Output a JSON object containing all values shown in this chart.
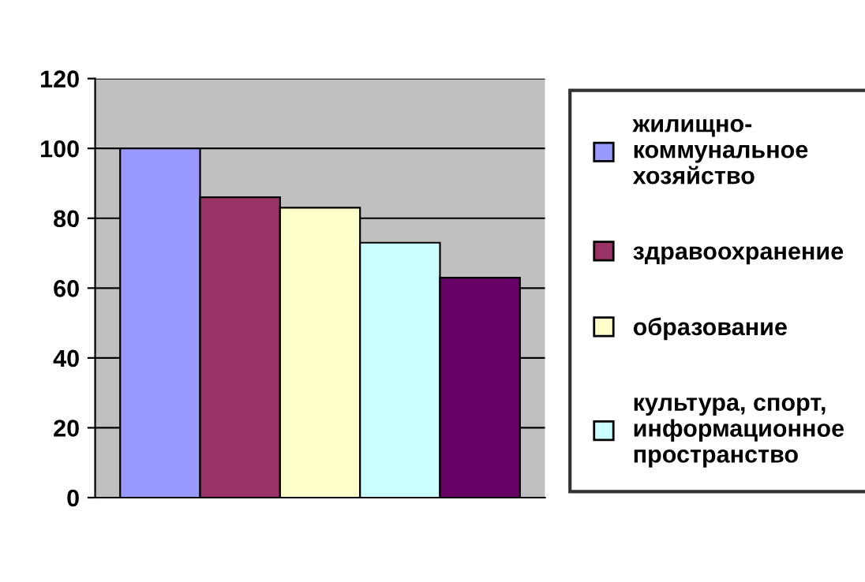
{
  "chart_data": {
    "type": "bar",
    "categories": [
      null
    ],
    "series": [
      {
        "name": "жилищно-\nкоммунальное\nхозяйство",
        "color": "#9999ff",
        "values": [
          100
        ]
      },
      {
        "name": "здравоохранение",
        "color": "#993366",
        "values": [
          86
        ]
      },
      {
        "name": "образование",
        "color": "#ffffcc",
        "values": [
          83
        ]
      },
      {
        "name": "культура, спорт,\nинформационное\nпространство",
        "color": "#ccffff",
        "values": [
          73
        ]
      },
      {
        "color": "#660066",
        "values": [
          63
        ]
      }
    ],
    "ylim": [
      0,
      120
    ],
    "yticks": [
      0,
      20,
      40,
      60,
      80,
      100,
      120
    ],
    "grid": "y",
    "legend": "right"
  }
}
